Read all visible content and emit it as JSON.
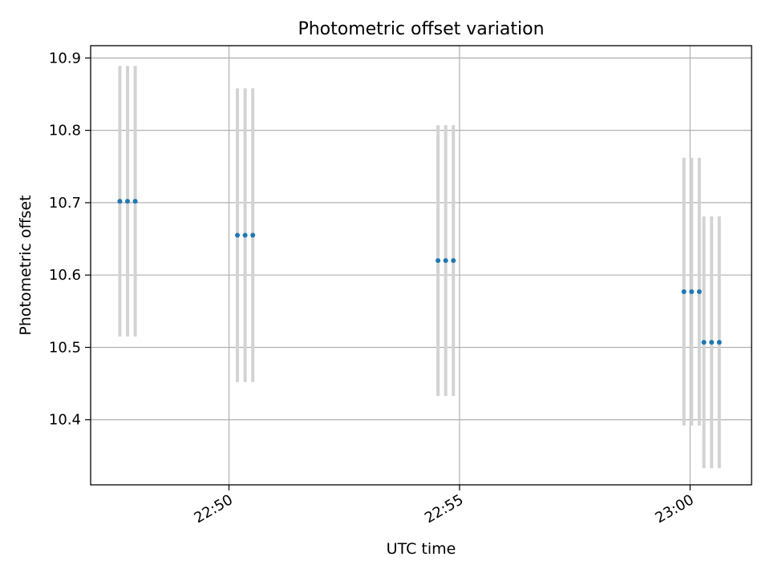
{
  "chart_data": {
    "type": "scatter",
    "title": "Photometric offset variation",
    "xlabel": "UTC time",
    "ylabel": "Photometric offset",
    "x_ticks": [
      "22:50",
      "22:55",
      "23:00"
    ],
    "y_ticks": [
      "10.4",
      "10.5",
      "10.6",
      "10.7",
      "10.8",
      "10.9"
    ],
    "xlim": [
      "22:47:00",
      "23:01:20"
    ],
    "ylim": [
      10.31,
      10.917
    ],
    "grid": true,
    "marker_color": "#1f77b4",
    "errorbar_color": "#d3d3d3",
    "points": [
      {
        "x": "22:47:38",
        "y": 10.702,
        "yerr": 0.187
      },
      {
        "x": "22:47:48",
        "y": 10.702,
        "yerr": 0.187
      },
      {
        "x": "22:47:58",
        "y": 10.702,
        "yerr": 0.187
      },
      {
        "x": "22:50:11",
        "y": 10.655,
        "yerr": 0.203
      },
      {
        "x": "22:50:21",
        "y": 10.655,
        "yerr": 0.203
      },
      {
        "x": "22:50:31",
        "y": 10.655,
        "yerr": 0.203
      },
      {
        "x": "22:54:32",
        "y": 10.62,
        "yerr": 0.187
      },
      {
        "x": "22:54:42",
        "y": 10.62,
        "yerr": 0.187
      },
      {
        "x": "22:54:52",
        "y": 10.62,
        "yerr": 0.187
      },
      {
        "x": "22:59:52",
        "y": 10.577,
        "yerr": 0.185
      },
      {
        "x": "23:00:02",
        "y": 10.577,
        "yerr": 0.185
      },
      {
        "x": "23:00:12",
        "y": 10.577,
        "yerr": 0.185
      },
      {
        "x": "23:00:18",
        "y": 10.507,
        "yerr": 0.174
      },
      {
        "x": "23:00:28",
        "y": 10.507,
        "yerr": 0.174
      },
      {
        "x": "23:00:38",
        "y": 10.507,
        "yerr": 0.174
      }
    ]
  }
}
